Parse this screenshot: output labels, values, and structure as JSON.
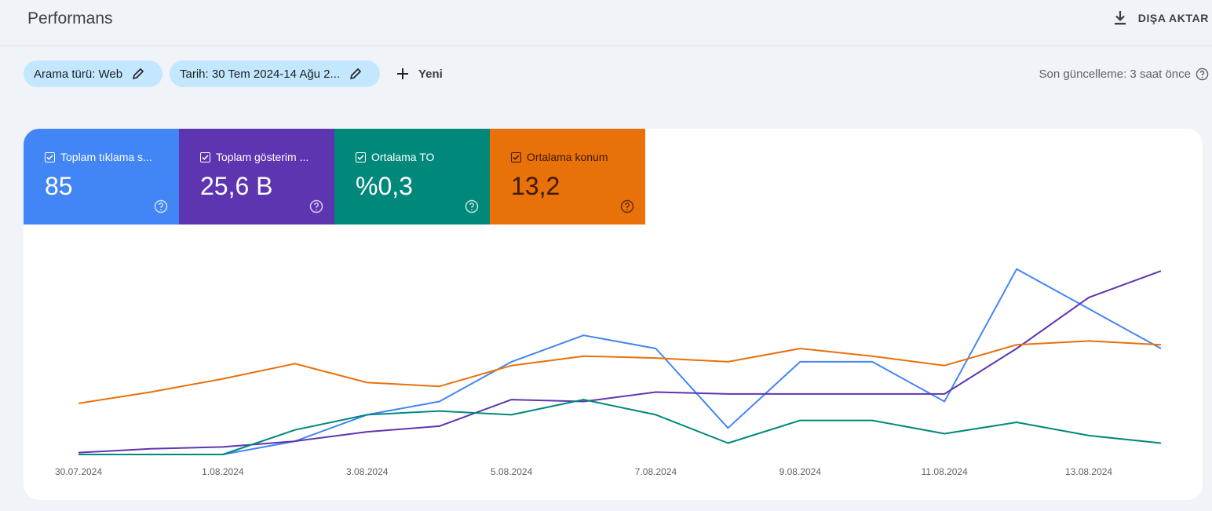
{
  "header": {
    "title": "Performans",
    "export_label": "DIŞA AKTAR"
  },
  "filters": {
    "chips": [
      {
        "label": "Arama türü: Web"
      },
      {
        "label": "Tarih: 30 Tem 2024-14 Ağu 2..."
      }
    ],
    "new_label": "Yeni"
  },
  "last_update": "Son güncelleme: 3 saat önce",
  "metrics": [
    {
      "label": "Toplam tıklama s...",
      "value": "85",
      "color": "#4285f4",
      "text_color": "#ffffff",
      "checked": true
    },
    {
      "label": "Toplam gösterim ...",
      "value": "25,6 B",
      "color": "#5e35b1",
      "text_color": "#ffffff",
      "checked": true
    },
    {
      "label": "Ortalama TO",
      "value": "%0,3",
      "color": "#00897b",
      "text_color": "#ffffff",
      "checked": true
    },
    {
      "label": "Ortalama konum",
      "value": "13,2",
      "color": "#e8710a",
      "text_color": "#3c1a00",
      "checked": true
    }
  ],
  "chart_data": {
    "type": "line",
    "x": [
      "30.07.2024",
      "31.07.2024",
      "1.08.2024",
      "2.08.2024",
      "3.08.2024",
      "4.08.2024",
      "5.08.2024",
      "6.08.2024",
      "7.08.2024",
      "8.08.2024",
      "9.08.2024",
      "10.08.2024",
      "11.08.2024",
      "12.08.2024",
      "13.08.2024",
      "14.08.2024"
    ],
    "x_tick_labels": [
      "30.07.2024",
      "1.08.2024",
      "3.08.2024",
      "5.08.2024",
      "7.08.2024",
      "9.08.2024",
      "11.08.2024",
      "13.08.2024"
    ],
    "y_axis": "normalized 0-100 per series (no printed axis)",
    "grid": false,
    "series": [
      {
        "name": "Toplam tıklama s...",
        "color": "#4285f4",
        "values": [
          0,
          0,
          0,
          7,
          21,
          28,
          49,
          63,
          56,
          14,
          49,
          49,
          28,
          98,
          77,
          56
        ]
      },
      {
        "name": "Toplam gösterim ...",
        "color": "#5e35b1",
        "values": [
          1,
          3,
          4,
          7,
          12,
          15,
          29,
          28,
          33,
          32,
          32,
          32,
          32,
          56,
          83,
          97
        ]
      },
      {
        "name": "Ortalama TO",
        "color": "#00897b",
        "values": [
          0,
          0,
          0,
          13,
          21,
          23,
          21,
          29,
          21,
          6,
          18,
          18,
          11,
          17,
          10,
          6
        ]
      },
      {
        "name": "Ortalama konum",
        "color": "#e8710a",
        "values": [
          27,
          33,
          40,
          48,
          38,
          36,
          47,
          52,
          51,
          49,
          56,
          52,
          47,
          58,
          60,
          58
        ]
      }
    ]
  }
}
